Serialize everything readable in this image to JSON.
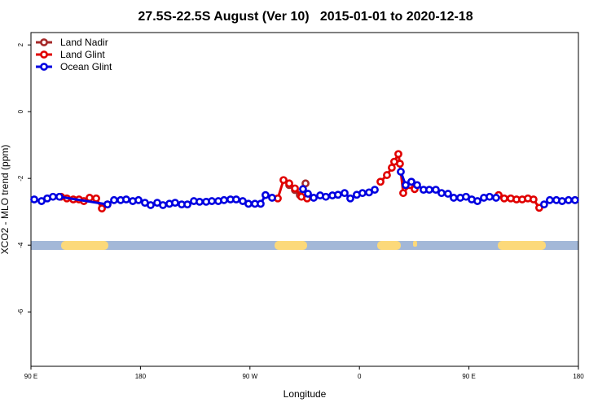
{
  "chart_data": {
    "type": "line",
    "title": "27.5S-22.5S August (Ver 10)   2015-01-01 to 2020-12-18",
    "x_label": "Longitude",
    "y_label": "XCO2 - MLO trend (ppm)",
    "xlim": [
      90,
      540
    ],
    "ylim": [
      -7.63,
      2.37
    ],
    "xticks": [
      {
        "value": 90,
        "label": "90 E"
      },
      {
        "value": 180,
        "label": "180"
      },
      {
        "value": 270,
        "label": "90 W"
      },
      {
        "value": 360,
        "label": "0"
      },
      {
        "value": 450,
        "label": "90 E"
      },
      {
        "value": 540,
        "label": "180"
      }
    ],
    "yticks": [
      2,
      0,
      -2,
      -4,
      -6
    ],
    "legend": "top-left",
    "series": [
      {
        "name": "Land Nadir",
        "color": "#a52a2a",
        "x": [
          302.3,
          307,
          311,
          315.7
        ],
        "values": [
          -2.2,
          -2.35,
          -2.5,
          -2.15
        ]
      },
      {
        "name": "Land Glint",
        "color": "#e00000",
        "x": [
          114.8,
          119.5,
          124.8,
          129.5,
          133.5,
          138.2,
          143.6,
          148.3,
          152.9,
          null,
          292.9,
          297.6,
          302.3,
          307,
          312.3,
          317,
          null,
          377.3,
          382.6,
          386.6,
          388.6,
          392,
          393.3,
          396,
          401.4,
          405.4,
          null,
          474.4,
          479,
          484.4,
          489.1,
          493.8,
          498.5,
          503.1,
          507.8
        ],
        "values": [
          -2.55,
          -2.6,
          -2.63,
          -2.63,
          -2.68,
          -2.58,
          -2.6,
          -2.9,
          -2.78,
          null,
          -2.6,
          -2.05,
          -2.15,
          -2.3,
          -2.55,
          -2.6,
          null,
          -2.1,
          -1.9,
          -1.68,
          -1.5,
          -1.27,
          -1.56,
          -2.44,
          -2.2,
          -2.32,
          null,
          -2.5,
          -2.6,
          -2.6,
          -2.63,
          -2.63,
          -2.6,
          -2.63,
          -2.88
        ]
      },
      {
        "name": "Ocean Glint",
        "color": "#0000e0",
        "x": [
          92.7,
          98.7,
          103.4,
          108.1,
          113.4,
          152.9,
          158.3,
          163.7,
          168.3,
          173.7,
          178.4,
          183.7,
          188.4,
          193.8,
          198.5,
          203.8,
          208.5,
          213.9,
          218.6,
          223.9,
          228.6,
          234,
          238.7,
          244,
          248.7,
          254,
          258.7,
          264.1,
          268.8,
          274.1,
          278.8,
          282.8,
          288.2,
          null,
          313.6,
          317.7,
          322.4,
          327.7,
          332.4,
          337.8,
          342.4,
          347.8,
          352.5,
          357.8,
          362.5,
          367.9,
          372.6,
          null,
          394,
          398,
          402.7,
          407.4,
          412.7,
          417.4,
          422.8,
          427.5,
          432.8,
          437.5,
          442.9,
          447.6,
          452.3,
          457,
          462.3,
          467,
          472.3,
          null,
          511.8,
          516.5,
          521.9,
          526.6,
          531.9,
          537.2
        ],
        "values": [
          -2.63,
          -2.68,
          -2.6,
          -2.55,
          -2.55,
          -2.78,
          -2.65,
          -2.65,
          -2.63,
          -2.68,
          -2.65,
          -2.73,
          -2.8,
          -2.73,
          -2.8,
          -2.76,
          -2.73,
          -2.78,
          -2.78,
          -2.68,
          -2.7,
          -2.7,
          -2.68,
          -2.68,
          -2.65,
          -2.63,
          -2.63,
          -2.68,
          -2.76,
          -2.76,
          -2.76,
          -2.5,
          -2.58,
          null,
          -2.32,
          -2.46,
          -2.58,
          -2.51,
          -2.55,
          -2.51,
          -2.49,
          -2.44,
          -2.6,
          -2.49,
          -2.44,
          -2.42,
          -2.34,
          null,
          -1.8,
          -2.2,
          -2.1,
          -2.2,
          -2.34,
          -2.34,
          -2.34,
          -2.44,
          -2.46,
          -2.58,
          -2.58,
          -2.55,
          -2.63,
          -2.68,
          -2.58,
          -2.55,
          -2.58,
          null,
          -2.78,
          -2.65,
          -2.65,
          -2.68,
          -2.65,
          -2.65
        ]
      }
    ]
  }
}
